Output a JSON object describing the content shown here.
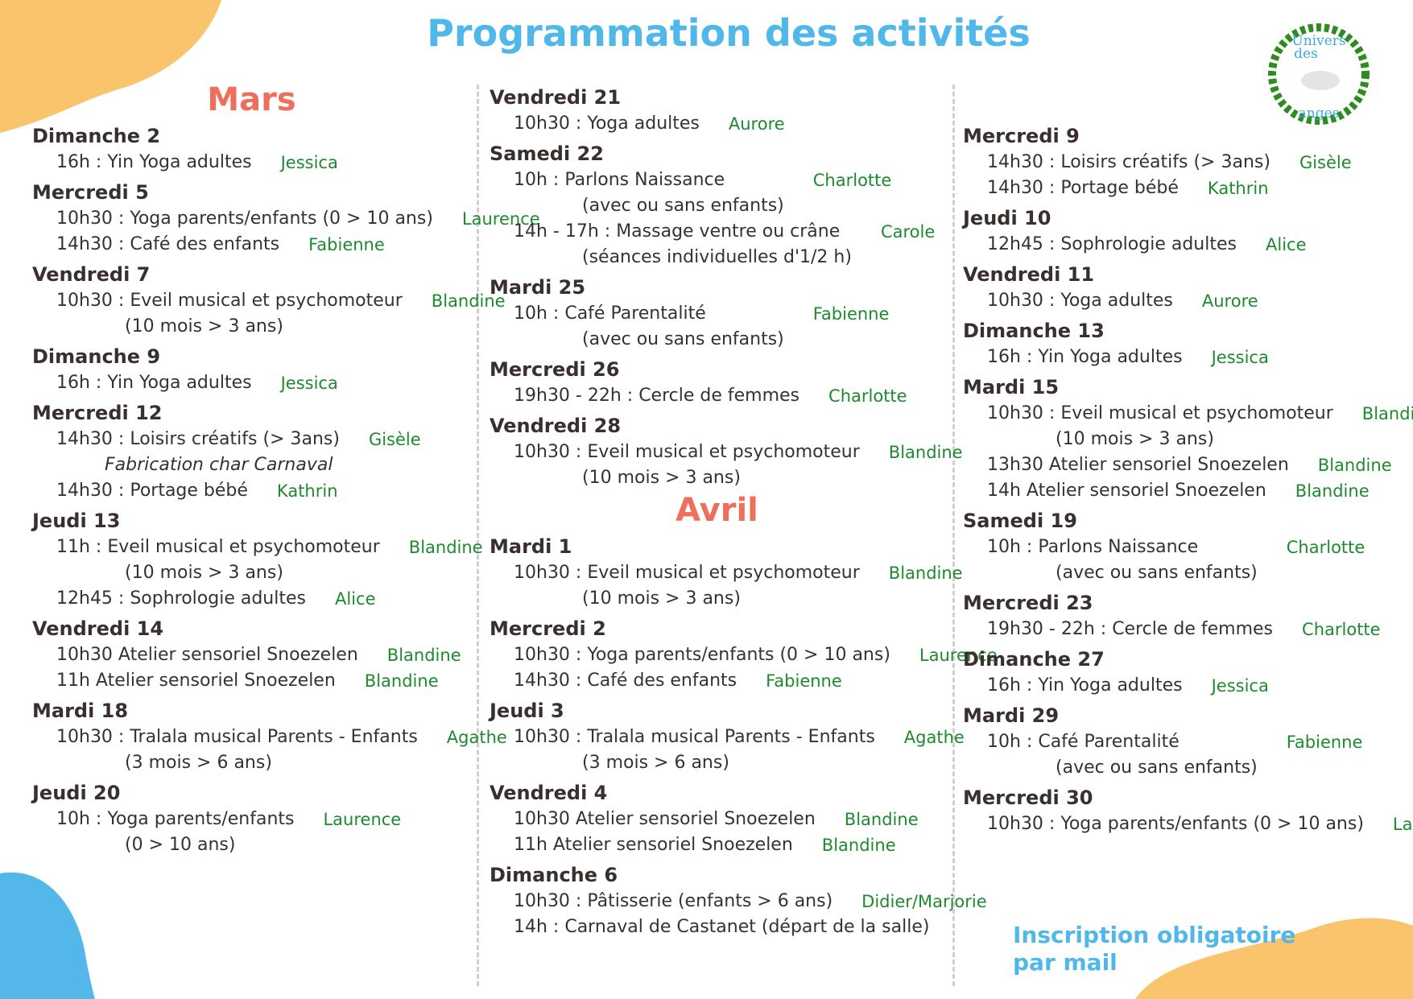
{
  "header": {
    "title": "Programmation des activités"
  },
  "logo": {
    "lines": [
      "Univers",
      "des",
      "anges"
    ]
  },
  "columns": [
    {
      "blocks": [
        {
          "heading": "Mars"
        },
        {
          "day": "Dimanche 2",
          "items": [
            {
              "lines": [
                "16h : Yin Yoga adultes"
              ],
              "person": "Jessica"
            }
          ]
        },
        {
          "day": "Mercredi 5",
          "items": [
            {
              "lines": [
                "10h30 : Yoga parents/enfants (0 > 10 ans)"
              ],
              "person": "Laurence"
            },
            {
              "lines": [
                "14h30 : Café des enfants"
              ],
              "person": "Fabienne"
            }
          ]
        },
        {
          "day": "Vendredi 7",
          "items": [
            {
              "lines": [
                "10h30 : Eveil musical et psychomoteur",
                "(10 mois > 3 ans)"
              ],
              "person": "Blandine"
            }
          ]
        },
        {
          "day": "Dimanche 9",
          "items": [
            {
              "lines": [
                "16h : Yin Yoga adultes"
              ],
              "person": "Jessica"
            }
          ]
        },
        {
          "day": "Mercredi 12",
          "items": [
            {
              "lines": [
                "14h30 : Loisirs créatifs (> 3ans)"
              ],
              "person": "Gisèle",
              "note": "Fabrication char Carnaval"
            },
            {
              "lines": [
                "14h30 : Portage bébé"
              ],
              "person": "Kathrin"
            }
          ]
        },
        {
          "day": "Jeudi 13",
          "items": [
            {
              "lines": [
                "11h : Eveil musical et psychomoteur",
                "(10 mois > 3 ans)"
              ],
              "person": "Blandine"
            },
            {
              "lines": [
                "12h45 : Sophrologie adultes"
              ],
              "person": "Alice"
            }
          ]
        },
        {
          "day": "Vendredi 14",
          "items": [
            {
              "lines": [
                "10h30 Atelier sensoriel Snoezelen"
              ],
              "person": "Blandine"
            },
            {
              "lines": [
                "11h Atelier sensoriel Snoezelen"
              ],
              "person": "Blandine"
            }
          ]
        },
        {
          "day": "Mardi 18",
          "items": [
            {
              "lines": [
                "10h30 : Tralala musical Parents - Enfants",
                "(3 mois > 6 ans)"
              ],
              "person": "Agathe"
            }
          ]
        },
        {
          "day": "Jeudi 20",
          "items": [
            {
              "lines": [
                "10h : Yoga parents/enfants",
                "(0 > 10 ans)"
              ],
              "person": "Laurence"
            }
          ]
        }
      ]
    },
    {
      "blocks": [
        {
          "day": "Vendredi 21",
          "items": [
            {
              "lines": [
                "10h30 : Yoga adultes"
              ],
              "person": "Aurore"
            }
          ]
        },
        {
          "day": "Samedi 22",
          "items": [
            {
              "lines": [
                "10h : Parlons Naissance",
                "(avec ou sans enfants)"
              ],
              "person": "Charlotte"
            },
            {
              "lines": [
                "14h - 17h : Massage ventre ou crâne",
                "(séances individuelles d'1/2 h)"
              ],
              "person": "Carole"
            }
          ]
        },
        {
          "day": "Mardi 25",
          "items": [
            {
              "lines": [
                "10h : Café Parentalité",
                "(avec ou sans enfants)"
              ],
              "person": "Fabienne"
            }
          ]
        },
        {
          "day": "Mercredi 26",
          "items": [
            {
              "lines": [
                "19h30 - 22h : Cercle de femmes"
              ],
              "person": "Charlotte"
            }
          ]
        },
        {
          "day": "Vendredi 28",
          "items": [
            {
              "lines": [
                "10h30 : Eveil musical et psychomoteur",
                "(10 mois > 3 ans)"
              ],
              "person": "Blandine"
            }
          ]
        },
        {
          "heading": "Avril"
        },
        {
          "day": "Mardi 1",
          "items": [
            {
              "lines": [
                "10h30 : Eveil musical et psychomoteur",
                "(10 mois > 3 ans)"
              ],
              "person": "Blandine"
            }
          ]
        },
        {
          "day": "Mercredi 2",
          "items": [
            {
              "lines": [
                "10h30 : Yoga parents/enfants (0 > 10 ans)"
              ],
              "person": "Laurence"
            },
            {
              "lines": [
                "14h30 : Café des enfants"
              ],
              "person": "Fabienne"
            }
          ]
        },
        {
          "day": "Jeudi 3",
          "items": [
            {
              "lines": [
                "10h30 : Tralala musical Parents - Enfants",
                "(3 mois > 6 ans)"
              ],
              "person": "Agathe"
            }
          ]
        },
        {
          "day": "Vendredi 4",
          "items": [
            {
              "lines": [
                "10h30 Atelier sensoriel Snoezelen"
              ],
              "person": "Blandine"
            },
            {
              "lines": [
                "11h Atelier sensoriel Snoezelen"
              ],
              "person": "Blandine"
            }
          ]
        },
        {
          "day": "Dimanche 6",
          "items": [
            {
              "lines": [
                "10h30 : Pâtisserie (enfants > 6 ans)"
              ],
              "person": "Didier/Marjorie"
            },
            {
              "lines": [
                "14h : Carnaval de Castanet (départ de la salle)"
              ]
            }
          ]
        }
      ]
    },
    {
      "blocks": [
        {
          "day": "Mercredi 9",
          "items": [
            {
              "lines": [
                "14h30 : Loisirs créatifs (> 3ans)"
              ],
              "person": "Gisèle"
            },
            {
              "lines": [
                "14h30 : Portage bébé"
              ],
              "person": "Kathrin"
            }
          ]
        },
        {
          "day": "Jeudi 10",
          "items": [
            {
              "lines": [
                "12h45 : Sophrologie adultes"
              ],
              "person": "Alice"
            }
          ]
        },
        {
          "day": "Vendredi 11",
          "items": [
            {
              "lines": [
                "10h30 : Yoga adultes"
              ],
              "person": "Aurore"
            }
          ]
        },
        {
          "day": "Dimanche 13",
          "items": [
            {
              "lines": [
                "16h : Yin Yoga adultes"
              ],
              "person": "Jessica"
            }
          ]
        },
        {
          "day": "Mardi 15",
          "items": [
            {
              "lines": [
                "10h30 : Eveil musical et psychomoteur",
                "(10 mois > 3 ans)"
              ],
              "person": "Blandine"
            },
            {
              "lines": [
                "13h30 Atelier sensoriel Snoezelen"
              ],
              "person": "Blandine"
            },
            {
              "lines": [
                "14h Atelier sensoriel Snoezelen"
              ],
              "person": "Blandine"
            }
          ]
        },
        {
          "day": "Samedi 19",
          "items": [
            {
              "lines": [
                "10h : Parlons Naissance",
                "(avec ou sans enfants)"
              ],
              "person": "Charlotte"
            }
          ]
        },
        {
          "day": "Mercredi 23",
          "items": [
            {
              "lines": [
                "19h30 - 22h : Cercle de femmes"
              ],
              "person": "Charlotte"
            }
          ]
        },
        {
          "day": "Dimanche 27",
          "items": [
            {
              "lines": [
                "16h : Yin Yoga adultes"
              ],
              "person": "Jessica"
            }
          ]
        },
        {
          "day": "Mardi 29",
          "items": [
            {
              "lines": [
                "10h : Café Parentalité",
                "(avec ou sans enfants)"
              ],
              "person": "Fabienne"
            }
          ]
        },
        {
          "day": "Mercredi 30",
          "items": [
            {
              "lines": [
                "10h30 : Yoga parents/enfants (0 > 10 ans)"
              ],
              "person": "Laurence"
            }
          ]
        }
      ]
    }
  ],
  "footer": {
    "lines": [
      "Inscription obligatoire",
      "par mail"
    ]
  }
}
